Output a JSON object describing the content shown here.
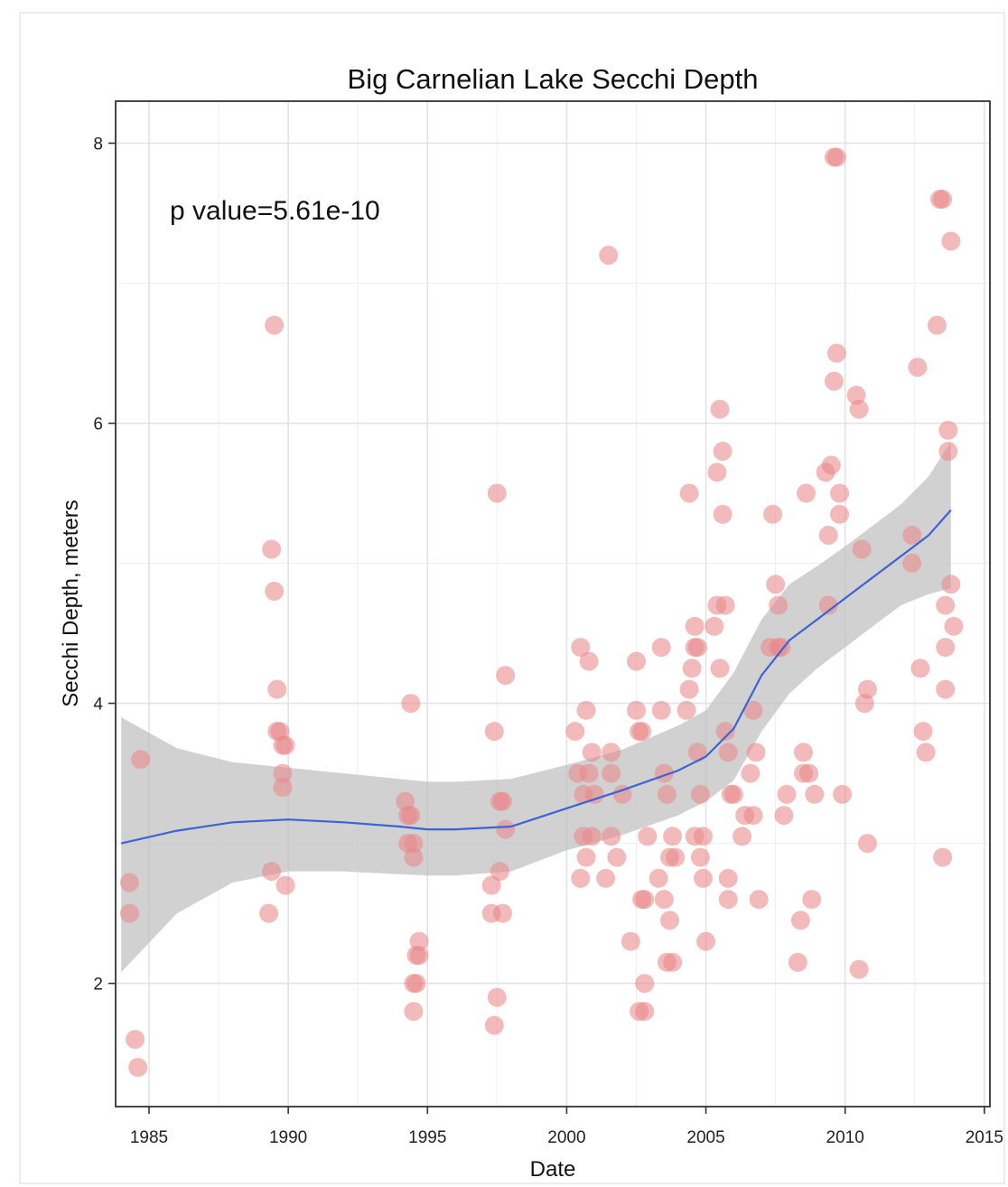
{
  "chart_data": {
    "type": "scatter",
    "title": "Big Carnelian Lake Secchi Depth",
    "xlabel": "Date",
    "ylabel": "Secchi Depth, meters",
    "annotation": "p value=5.61e-10",
    "xlim": [
      1983.8,
      2015.2
    ],
    "ylim": [
      1.12,
      8.3
    ],
    "x_ticks": [
      1985,
      1990,
      1995,
      2000,
      2005,
      2010,
      2015
    ],
    "y_ticks": [
      2,
      4,
      6,
      8
    ],
    "grid": true,
    "colors": {
      "points": "#e8888a",
      "smooth_line": "#3b63d6",
      "confidence_band": "#bfbfbf",
      "panel_border": "#333333"
    },
    "points": [
      {
        "x": 1984.3,
        "y": 2.72
      },
      {
        "x": 1984.3,
        "y": 2.5
      },
      {
        "x": 1984.5,
        "y": 1.6
      },
      {
        "x": 1984.6,
        "y": 1.4
      },
      {
        "x": 1984.7,
        "y": 3.6
      },
      {
        "x": 1989.3,
        "y": 2.5
      },
      {
        "x": 1989.4,
        "y": 2.8
      },
      {
        "x": 1989.4,
        "y": 5.1
      },
      {
        "x": 1989.5,
        "y": 4.8
      },
      {
        "x": 1989.5,
        "y": 6.7
      },
      {
        "x": 1989.6,
        "y": 4.1
      },
      {
        "x": 1989.6,
        "y": 3.8
      },
      {
        "x": 1989.7,
        "y": 3.8
      },
      {
        "x": 1989.8,
        "y": 3.7
      },
      {
        "x": 1989.8,
        "y": 3.5
      },
      {
        "x": 1989.8,
        "y": 3.4
      },
      {
        "x": 1989.9,
        "y": 2.7
      },
      {
        "x": 1989.9,
        "y": 3.7
      },
      {
        "x": 1994.2,
        "y": 3.3
      },
      {
        "x": 1994.3,
        "y": 3.2
      },
      {
        "x": 1994.3,
        "y": 3.0
      },
      {
        "x": 1994.4,
        "y": 4.0
      },
      {
        "x": 1994.4,
        "y": 3.2
      },
      {
        "x": 1994.5,
        "y": 3.0
      },
      {
        "x": 1994.5,
        "y": 2.9
      },
      {
        "x": 1994.5,
        "y": 1.8
      },
      {
        "x": 1994.5,
        "y": 2.0
      },
      {
        "x": 1994.6,
        "y": 2.2
      },
      {
        "x": 1994.6,
        "y": 2.0
      },
      {
        "x": 1994.7,
        "y": 2.3
      },
      {
        "x": 1994.7,
        "y": 2.2
      },
      {
        "x": 1997.3,
        "y": 2.7
      },
      {
        "x": 1997.3,
        "y": 2.5
      },
      {
        "x": 1997.4,
        "y": 3.8
      },
      {
        "x": 1997.4,
        "y": 1.7
      },
      {
        "x": 1997.5,
        "y": 5.5
      },
      {
        "x": 1997.5,
        "y": 1.9
      },
      {
        "x": 1997.6,
        "y": 2.8
      },
      {
        "x": 1997.6,
        "y": 3.3
      },
      {
        "x": 1997.7,
        "y": 3.3
      },
      {
        "x": 1997.7,
        "y": 2.5
      },
      {
        "x": 1997.8,
        "y": 3.1
      },
      {
        "x": 1997.8,
        "y": 4.2
      },
      {
        "x": 2000.3,
        "y": 3.8
      },
      {
        "x": 2000.4,
        "y": 3.5
      },
      {
        "x": 2000.5,
        "y": 4.4
      },
      {
        "x": 2000.5,
        "y": 2.75
      },
      {
        "x": 2000.6,
        "y": 3.05
      },
      {
        "x": 2000.6,
        "y": 3.35
      },
      {
        "x": 2000.7,
        "y": 3.95
      },
      {
        "x": 2000.7,
        "y": 2.9
      },
      {
        "x": 2000.8,
        "y": 4.3
      },
      {
        "x": 2000.8,
        "y": 3.5
      },
      {
        "x": 2000.9,
        "y": 3.65
      },
      {
        "x": 2000.9,
        "y": 3.05
      },
      {
        "x": 2001.0,
        "y": 3.35
      },
      {
        "x": 2001.4,
        "y": 2.75
      },
      {
        "x": 2001.5,
        "y": 7.2
      },
      {
        "x": 2001.6,
        "y": 3.05
      },
      {
        "x": 2001.6,
        "y": 3.5
      },
      {
        "x": 2001.6,
        "y": 3.65
      },
      {
        "x": 2001.8,
        "y": 2.9
      },
      {
        "x": 2002.0,
        "y": 3.35
      },
      {
        "x": 2002.3,
        "y": 2.3
      },
      {
        "x": 2002.5,
        "y": 4.3
      },
      {
        "x": 2002.5,
        "y": 3.95
      },
      {
        "x": 2002.6,
        "y": 3.8
      },
      {
        "x": 2002.6,
        "y": 1.8
      },
      {
        "x": 2002.7,
        "y": 2.6
      },
      {
        "x": 2002.7,
        "y": 3.8
      },
      {
        "x": 2002.8,
        "y": 2.6
      },
      {
        "x": 2002.8,
        "y": 1.8
      },
      {
        "x": 2002.8,
        "y": 2.0
      },
      {
        "x": 2002.9,
        "y": 3.05
      },
      {
        "x": 2003.3,
        "y": 2.75
      },
      {
        "x": 2003.4,
        "y": 4.4
      },
      {
        "x": 2003.4,
        "y": 3.95
      },
      {
        "x": 2003.5,
        "y": 3.5
      },
      {
        "x": 2003.5,
        "y": 2.6
      },
      {
        "x": 2003.6,
        "y": 3.35
      },
      {
        "x": 2003.6,
        "y": 2.15
      },
      {
        "x": 2003.7,
        "y": 2.45
      },
      {
        "x": 2003.7,
        "y": 2.9
      },
      {
        "x": 2003.8,
        "y": 2.15
      },
      {
        "x": 2003.8,
        "y": 3.05
      },
      {
        "x": 2003.9,
        "y": 2.9
      },
      {
        "x": 2004.3,
        "y": 3.95
      },
      {
        "x": 2004.4,
        "y": 5.5
      },
      {
        "x": 2004.4,
        "y": 4.1
      },
      {
        "x": 2004.5,
        "y": 4.25
      },
      {
        "x": 2004.6,
        "y": 4.4
      },
      {
        "x": 2004.6,
        "y": 4.55
      },
      {
        "x": 2004.6,
        "y": 3.05
      },
      {
        "x": 2004.7,
        "y": 3.65
      },
      {
        "x": 2004.7,
        "y": 4.4
      },
      {
        "x": 2004.8,
        "y": 3.35
      },
      {
        "x": 2004.8,
        "y": 2.9
      },
      {
        "x": 2004.9,
        "y": 2.75
      },
      {
        "x": 2004.9,
        "y": 3.05
      },
      {
        "x": 2005.0,
        "y": 2.3
      },
      {
        "x": 2005.3,
        "y": 4.55
      },
      {
        "x": 2005.4,
        "y": 5.65
      },
      {
        "x": 2005.4,
        "y": 4.7
      },
      {
        "x": 2005.5,
        "y": 6.1
      },
      {
        "x": 2005.5,
        "y": 4.25
      },
      {
        "x": 2005.6,
        "y": 5.8
      },
      {
        "x": 2005.6,
        "y": 5.35
      },
      {
        "x": 2005.7,
        "y": 4.7
      },
      {
        "x": 2005.7,
        "y": 3.8
      },
      {
        "x": 2005.8,
        "y": 3.65
      },
      {
        "x": 2005.8,
        "y": 2.6
      },
      {
        "x": 2005.8,
        "y": 2.75
      },
      {
        "x": 2005.9,
        "y": 3.35
      },
      {
        "x": 2006.0,
        "y": 3.35
      },
      {
        "x": 2006.3,
        "y": 3.05
      },
      {
        "x": 2006.4,
        "y": 3.2
      },
      {
        "x": 2006.6,
        "y": 3.5
      },
      {
        "x": 2006.7,
        "y": 3.95
      },
      {
        "x": 2006.7,
        "y": 3.2
      },
      {
        "x": 2006.8,
        "y": 3.65
      },
      {
        "x": 2006.9,
        "y": 2.6
      },
      {
        "x": 2007.3,
        "y": 4.4
      },
      {
        "x": 2007.4,
        "y": 5.35
      },
      {
        "x": 2007.5,
        "y": 4.85
      },
      {
        "x": 2007.6,
        "y": 4.4
      },
      {
        "x": 2007.6,
        "y": 4.7
      },
      {
        "x": 2007.7,
        "y": 4.4
      },
      {
        "x": 2007.8,
        "y": 3.2
      },
      {
        "x": 2007.9,
        "y": 3.35
      },
      {
        "x": 2008.3,
        "y": 2.15
      },
      {
        "x": 2008.4,
        "y": 2.45
      },
      {
        "x": 2008.5,
        "y": 3.65
      },
      {
        "x": 2008.5,
        "y": 3.5
      },
      {
        "x": 2008.6,
        "y": 5.5
      },
      {
        "x": 2008.7,
        "y": 3.5
      },
      {
        "x": 2008.8,
        "y": 2.6
      },
      {
        "x": 2008.9,
        "y": 3.35
      },
      {
        "x": 2009.3,
        "y": 5.65
      },
      {
        "x": 2009.4,
        "y": 4.7
      },
      {
        "x": 2009.4,
        "y": 5.2
      },
      {
        "x": 2009.5,
        "y": 5.7
      },
      {
        "x": 2009.6,
        "y": 6.3
      },
      {
        "x": 2009.6,
        "y": 7.9
      },
      {
        "x": 2009.7,
        "y": 7.9
      },
      {
        "x": 2009.7,
        "y": 6.5
      },
      {
        "x": 2009.8,
        "y": 5.35
      },
      {
        "x": 2009.8,
        "y": 5.5
      },
      {
        "x": 2009.9,
        "y": 3.35
      },
      {
        "x": 2010.4,
        "y": 6.2
      },
      {
        "x": 2010.5,
        "y": 6.1
      },
      {
        "x": 2010.5,
        "y": 2.1
      },
      {
        "x": 2010.6,
        "y": 5.1
      },
      {
        "x": 2010.7,
        "y": 4.0
      },
      {
        "x": 2010.8,
        "y": 4.1
      },
      {
        "x": 2010.8,
        "y": 3.0
      },
      {
        "x": 2012.4,
        "y": 5.2
      },
      {
        "x": 2012.4,
        "y": 5.0
      },
      {
        "x": 2012.6,
        "y": 6.4
      },
      {
        "x": 2012.7,
        "y": 4.25
      },
      {
        "x": 2012.8,
        "y": 3.8
      },
      {
        "x": 2012.9,
        "y": 3.65
      },
      {
        "x": 2013.3,
        "y": 6.7
      },
      {
        "x": 2013.4,
        "y": 7.6
      },
      {
        "x": 2013.5,
        "y": 7.6
      },
      {
        "x": 2013.5,
        "y": 2.9
      },
      {
        "x": 2013.6,
        "y": 4.7
      },
      {
        "x": 2013.6,
        "y": 4.1
      },
      {
        "x": 2013.6,
        "y": 4.4
      },
      {
        "x": 2013.7,
        "y": 5.95
      },
      {
        "x": 2013.7,
        "y": 5.8
      },
      {
        "x": 2013.8,
        "y": 4.85
      },
      {
        "x": 2013.8,
        "y": 7.3
      },
      {
        "x": 2013.9,
        "y": 4.55
      }
    ],
    "smooth": {
      "x": [
        1984.0,
        1986.0,
        1988.0,
        1990.0,
        1992.0,
        1994.0,
        1995.0,
        1996.0,
        1998.0,
        2000.0,
        2002.0,
        2004.0,
        2005.0,
        2006.0,
        2007.0,
        2008.0,
        2009.0,
        2010.0,
        2011.0,
        2012.0,
        2013.0,
        2013.8
      ],
      "y": [
        3.0,
        3.09,
        3.15,
        3.17,
        3.15,
        3.12,
        3.1,
        3.1,
        3.12,
        3.25,
        3.38,
        3.52,
        3.62,
        3.82,
        4.2,
        4.45,
        4.6,
        4.75,
        4.9,
        5.05,
        5.2,
        5.38
      ],
      "lower": [
        2.08,
        2.5,
        2.72,
        2.8,
        2.8,
        2.78,
        2.77,
        2.77,
        2.8,
        2.95,
        3.06,
        3.2,
        3.3,
        3.45,
        3.8,
        4.07,
        4.25,
        4.4,
        4.55,
        4.7,
        4.78,
        4.82
      ],
      "upper": [
        3.9,
        3.68,
        3.58,
        3.54,
        3.5,
        3.46,
        3.44,
        3.44,
        3.46,
        3.56,
        3.67,
        3.84,
        3.95,
        4.22,
        4.6,
        4.85,
        4.98,
        5.12,
        5.27,
        5.42,
        5.62,
        5.87
      ]
    }
  }
}
